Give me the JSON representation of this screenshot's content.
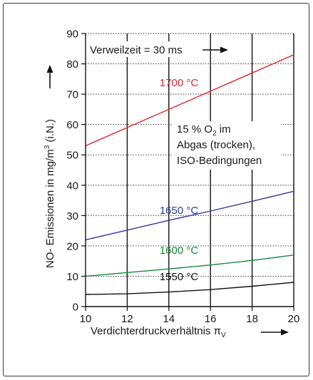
{
  "chart_data": {
    "type": "line",
    "annotation_residence_time": "Verweilzeit = 30 ms",
    "annotation_conditions": [
      "15 % O₂ im",
      "Abgas (trocken),",
      "ISO-Bedingungen"
    ],
    "xlabel": "Verdichterdruckverhältnis π",
    "xlabel_subscript": "V",
    "ylabel": "NO- Emissionen in mg/m³ (i.N.)",
    "xlim": [
      10,
      20
    ],
    "ylim": [
      0,
      90
    ],
    "x_ticks": [
      10,
      12,
      14,
      16,
      18,
      20
    ],
    "y_ticks": [
      0,
      10,
      20,
      30,
      40,
      50,
      60,
      70,
      80,
      90
    ],
    "grid_vertical": "solid",
    "grid_horizontal": "dotted",
    "series": [
      {
        "name": "1700 °C",
        "color": "#e8222b",
        "x": [
          10,
          12,
          14,
          16,
          18,
          20
        ],
        "values": [
          53,
          59,
          65,
          71,
          77,
          83
        ]
      },
      {
        "name": "1650 °C",
        "color": "#2c3e9c",
        "x": [
          10,
          12,
          14,
          16,
          18,
          20
        ],
        "values": [
          22,
          25.2,
          28.4,
          31.5,
          34.7,
          38
        ]
      },
      {
        "name": "1600 °C",
        "color": "#138c3a",
        "x": [
          10,
          12,
          14,
          16,
          18,
          20
        ],
        "values": [
          10,
          11.2,
          12.4,
          13.7,
          15.2,
          17
        ]
      },
      {
        "name": "1550 °C",
        "color": "#111111",
        "x": [
          10,
          12,
          14,
          16,
          18,
          20
        ],
        "values": [
          4,
          4.2,
          4.8,
          5.6,
          6.7,
          8
        ]
      }
    ]
  }
}
